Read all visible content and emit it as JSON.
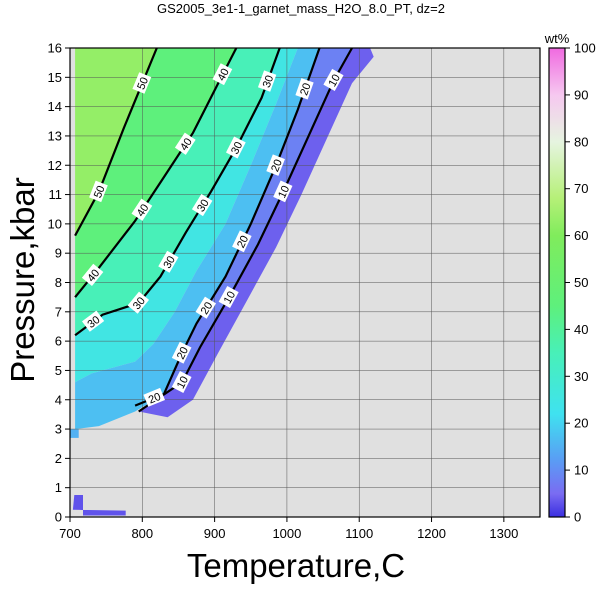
{
  "chart_data": {
    "type": "heatmap",
    "title": "GS2005_3e1-1_garnet_mass_H2O_8.0_PT, dz=2",
    "xlabel": "Temperature,C",
    "ylabel": "Pressure,kbar",
    "xlim": [
      700,
      1350
    ],
    "ylim": [
      0,
      16
    ],
    "x_ticks": [
      700,
      800,
      900,
      1000,
      1100,
      1200,
      1300
    ],
    "y_ticks": [
      0,
      1,
      2,
      3,
      4,
      5,
      6,
      7,
      8,
      9,
      10,
      11,
      12,
      13,
      14,
      15,
      16
    ],
    "grid": true,
    "background_color": "#e0e0e0",
    "colorbar": {
      "label": "wt%",
      "range": [
        0,
        100
      ],
      "ticks": [
        0,
        10,
        20,
        30,
        40,
        50,
        60,
        70,
        80,
        90,
        100
      ],
      "stops": [
        {
          "value": 0,
          "color": "#3a2ee0"
        },
        {
          "value": 5,
          "color": "#7a6cf2"
        },
        {
          "value": 12,
          "color": "#5a9cf4"
        },
        {
          "value": 22,
          "color": "#3fe2f0"
        },
        {
          "value": 35,
          "color": "#48f0b8"
        },
        {
          "value": 45,
          "color": "#5ef07c"
        },
        {
          "value": 60,
          "color": "#80ec5c"
        },
        {
          "value": 68,
          "color": "#b6f078"
        },
        {
          "value": 80,
          "color": "#e6f4e0"
        },
        {
          "value": 90,
          "color": "#f6c8f0"
        },
        {
          "value": 100,
          "color": "#f06ae0"
        }
      ]
    },
    "contours": [
      {
        "level": 10,
        "labels": [
          "10",
          "10",
          "10",
          "10"
        ],
        "points": [
          [
            795,
            3.6
          ],
          [
            855,
            4.6
          ],
          [
            880,
            5.8
          ],
          [
            920,
            7.5
          ],
          [
            960,
            9.3
          ],
          [
            995,
            11.1
          ],
          [
            1030,
            13.0
          ],
          [
            1065,
            14.9
          ],
          [
            1090,
            16.0
          ]
        ]
      },
      {
        "level": 20,
        "labels": [
          "20",
          "20",
          "20",
          "20",
          "20",
          "20"
        ],
        "points": [
          [
            790,
            3.8
          ],
          [
            830,
            4.2
          ],
          [
            855,
            5.6
          ],
          [
            875,
            6.6
          ],
          [
            915,
            8.2
          ],
          [
            950,
            10.0
          ],
          [
            985,
            12.0
          ],
          [
            1015,
            13.9
          ],
          [
            1045,
            16.0
          ]
        ]
      },
      {
        "level": 30,
        "labels": [
          "30",
          "30",
          "30",
          "30",
          "30",
          "30"
        ],
        "points": [
          [
            707,
            6.2
          ],
          [
            745,
            6.9
          ],
          [
            795,
            7.3
          ],
          [
            825,
            8.2
          ],
          [
            860,
            9.7
          ],
          [
            895,
            11.1
          ],
          [
            930,
            12.6
          ],
          [
            965,
            14.3
          ],
          [
            990,
            16.0
          ]
        ]
      },
      {
        "level": 40,
        "labels": [
          "40",
          "40",
          "40",
          "40"
        ],
        "points": [
          [
            707,
            7.5
          ],
          [
            740,
            8.5
          ],
          [
            790,
            10.1
          ],
          [
            830,
            11.6
          ],
          [
            870,
            13.1
          ],
          [
            905,
            14.8
          ],
          [
            930,
            16.0
          ]
        ]
      },
      {
        "level": 50,
        "labels": [
          "50",
          "50"
        ],
        "points": [
          [
            707,
            9.6
          ],
          [
            740,
            11.1
          ],
          [
            775,
            13.3
          ],
          [
            800,
            14.8
          ],
          [
            820,
            16.0
          ]
        ]
      }
    ],
    "regions": [
      {
        "value": 63,
        "points": [
          [
            707,
            16
          ],
          [
            707,
            9.6
          ],
          [
            740,
            11.1
          ],
          [
            775,
            13.3
          ],
          [
            800,
            14.8
          ],
          [
            820,
            16
          ]
        ]
      },
      {
        "value": 45,
        "points": [
          [
            707,
            9.6
          ],
          [
            707,
            7.5
          ],
          [
            740,
            8.5
          ],
          [
            790,
            10.1
          ],
          [
            830,
            11.6
          ],
          [
            870,
            13.1
          ],
          [
            905,
            14.8
          ],
          [
            930,
            16
          ],
          [
            820,
            16
          ],
          [
            800,
            14.8
          ],
          [
            775,
            13.3
          ],
          [
            740,
            11.1
          ]
        ]
      },
      {
        "value": 35,
        "points": [
          [
            707,
            7.5
          ],
          [
            707,
            6.2
          ],
          [
            745,
            6.9
          ],
          [
            795,
            7.3
          ],
          [
            825,
            8.2
          ],
          [
            860,
            9.7
          ],
          [
            895,
            11.1
          ],
          [
            930,
            12.6
          ],
          [
            965,
            14.3
          ],
          [
            990,
            16
          ],
          [
            930,
            16
          ],
          [
            905,
            14.8
          ],
          [
            870,
            13.1
          ],
          [
            830,
            11.6
          ],
          [
            790,
            10.1
          ],
          [
            740,
            8.5
          ]
        ]
      },
      {
        "value": 25,
        "points": [
          [
            707,
            6.2
          ],
          [
            707,
            4.6
          ],
          [
            730,
            4.9
          ],
          [
            790,
            5.3
          ],
          [
            815,
            5.9
          ],
          [
            845,
            7.0
          ],
          [
            875,
            8.4
          ],
          [
            915,
            10.0
          ],
          [
            950,
            12.0
          ],
          [
            985,
            14.1
          ],
          [
            1015,
            16
          ],
          [
            990,
            16
          ],
          [
            965,
            14.3
          ],
          [
            930,
            12.6
          ],
          [
            895,
            11.1
          ],
          [
            860,
            9.7
          ],
          [
            825,
            8.2
          ],
          [
            795,
            7.3
          ],
          [
            745,
            6.9
          ]
        ]
      },
      {
        "value": 17,
        "points": [
          [
            707,
            4.6
          ],
          [
            707,
            3.0
          ],
          [
            740,
            3.1
          ],
          [
            790,
            3.6
          ],
          [
            830,
            4.2
          ],
          [
            855,
            5.6
          ],
          [
            875,
            6.6
          ],
          [
            915,
            8.2
          ],
          [
            950,
            10.0
          ],
          [
            985,
            12.0
          ],
          [
            1015,
            13.9
          ],
          [
            1045,
            16
          ],
          [
            1015,
            16
          ],
          [
            985,
            14.1
          ],
          [
            950,
            12.0
          ],
          [
            915,
            10.0
          ],
          [
            875,
            8.4
          ],
          [
            845,
            7.0
          ],
          [
            815,
            5.9
          ],
          [
            790,
            5.3
          ],
          [
            730,
            4.9
          ]
        ]
      },
      {
        "value": 8,
        "points": [
          [
            790,
            3.6
          ],
          [
            830,
            4.2
          ],
          [
            855,
            5.6
          ],
          [
            875,
            6.6
          ],
          [
            915,
            8.2
          ],
          [
            950,
            10.0
          ],
          [
            985,
            12.0
          ],
          [
            1015,
            13.9
          ],
          [
            1045,
            16
          ],
          [
            1090,
            16
          ],
          [
            1065,
            14.9
          ],
          [
            1030,
            13.0
          ],
          [
            995,
            11.1
          ],
          [
            960,
            9.3
          ],
          [
            920,
            7.5
          ],
          [
            880,
            5.8
          ],
          [
            855,
            4.6
          ]
        ]
      },
      {
        "value": 4,
        "points": [
          [
            795,
            3.6
          ],
          [
            855,
            4.6
          ],
          [
            880,
            5.8
          ],
          [
            920,
            7.5
          ],
          [
            960,
            9.3
          ],
          [
            995,
            11.1
          ],
          [
            1030,
            13.0
          ],
          [
            1065,
            14.9
          ],
          [
            1090,
            16
          ],
          [
            1115,
            16
          ],
          [
            1120,
            15.7
          ],
          [
            1090,
            14.8
          ],
          [
            1055,
            12.9
          ],
          [
            1020,
            11.0
          ],
          [
            985,
            9.2
          ],
          [
            945,
            7.4
          ],
          [
            905,
            5.6
          ],
          [
            870,
            4.0
          ],
          [
            835,
            3.4
          ]
        ]
      },
      {
        "value": 15,
        "points": [
          [
            700,
            3.0
          ],
          [
            712,
            3.0
          ],
          [
            712,
            2.7
          ],
          [
            700,
            2.7
          ]
        ]
      },
      {
        "value": 3,
        "points": [
          [
            706,
            0.75
          ],
          [
            718,
            0.75
          ],
          [
            718,
            0.05
          ],
          [
            777,
            0.05
          ],
          [
            777,
            0.22
          ],
          [
            704,
            0.25
          ]
        ]
      }
    ]
  }
}
